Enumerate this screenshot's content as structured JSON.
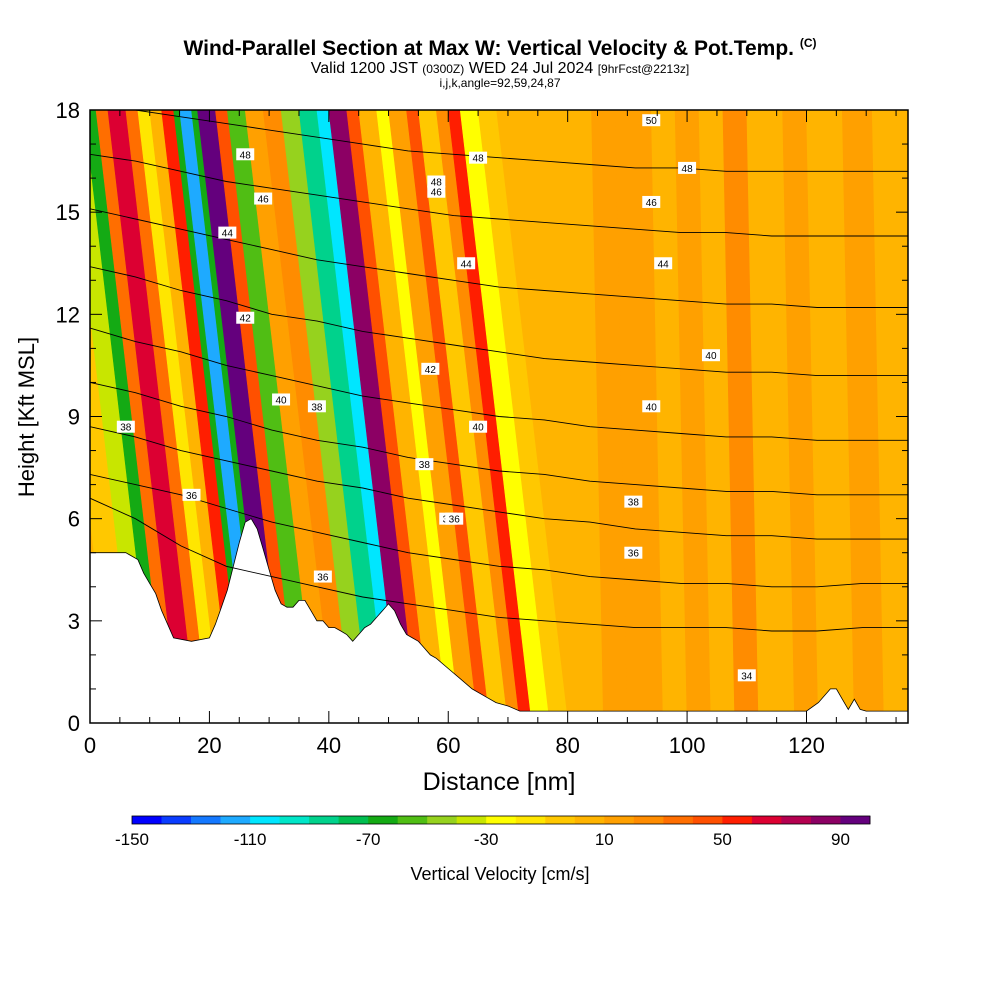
{
  "chart_data": {
    "type": "heatmap",
    "title": "Wind-Parallel Section at Max W: Vertical Velocity & Pot.Temp.",
    "title_mark": "(C)",
    "subtitle_main_a": "Valid 1200 JST",
    "subtitle_small_a": "(0300Z)",
    "subtitle_main_b": "WED 24 Jul 2024",
    "subtitle_small_b": "[9hrFcst@2213z]",
    "subtitle_line3": "i,j,k,angle=92,59,24,87",
    "xlabel": "Distance [nm]",
    "ylabel": "Height [Kft MSL]",
    "xlim": [
      0,
      137
    ],
    "ylim": [
      0,
      18
    ],
    "x_ticks": [
      "0",
      "20",
      "40",
      "60",
      "80",
      "100",
      "120"
    ],
    "y_ticks": [
      "0",
      "3",
      "6",
      "9",
      "12",
      "15",
      "18"
    ],
    "colorbar": {
      "label": "Vertical Velocity [cm/s]",
      "ticks": [
        "-150",
        "-110",
        "-70",
        "-30",
        "10",
        "50",
        "90"
      ],
      "tick_values": [
        -150,
        -110,
        -70,
        -30,
        10,
        50,
        90
      ],
      "min": -150,
      "max": 100,
      "colors": [
        "#0000ff",
        "#0a3cff",
        "#1478ff",
        "#1eaaff",
        "#00e6ff",
        "#00e6c8",
        "#00d28c",
        "#00be50",
        "#14aa14",
        "#50be14",
        "#96d21e",
        "#c8e600",
        "#ffff00",
        "#ffe600",
        "#ffc800",
        "#ffb400",
        "#ffa000",
        "#ff8c00",
        "#ff6e00",
        "#ff5000",
        "#ff1e00",
        "#dc0032",
        "#b40050",
        "#8c0064",
        "#64007d"
      ]
    },
    "contour_labels": [
      "50",
      "48",
      "48",
      "48",
      "48",
      "46",
      "46",
      "46",
      "44",
      "44",
      "44",
      "42",
      "42",
      "40",
      "40",
      "40",
      "40",
      "38",
      "38",
      "38",
      "38",
      "38",
      "36",
      "36",
      "36",
      "36",
      "34"
    ],
    "contour_levels": [
      {
        "theta": 34,
        "heights": [
          6.6,
          6.0,
          5.2,
          4.6,
          4.3,
          4.0,
          3.7,
          3.5,
          3.3,
          3.1,
          3.0,
          2.9,
          2.8,
          2.8,
          2.8,
          2.7,
          2.7,
          2.8,
          2.8
        ]
      },
      {
        "theta": 36,
        "heights": [
          7.3,
          7.0,
          6.7,
          6.3,
          5.9,
          5.6,
          5.3,
          5.0,
          4.8,
          4.6,
          4.5,
          4.3,
          4.2,
          4.1,
          4.1,
          4.0,
          4.0,
          4.1,
          4.1
        ]
      },
      {
        "theta": 38,
        "heights": [
          8.7,
          8.4,
          8.0,
          7.7,
          7.4,
          7.1,
          6.9,
          6.6,
          6.4,
          6.2,
          6.0,
          5.9,
          5.7,
          5.6,
          5.5,
          5.5,
          5.4,
          5.4,
          5.4
        ]
      },
      {
        "theta": 40,
        "heights": [
          10.0,
          9.7,
          9.3,
          9.0,
          8.6,
          8.3,
          8.1,
          7.8,
          7.6,
          7.4,
          7.3,
          7.1,
          7.0,
          6.9,
          6.8,
          6.8,
          6.7,
          6.7,
          6.7
        ]
      },
      {
        "theta": 42,
        "heights": [
          11.6,
          11.2,
          10.9,
          10.5,
          10.2,
          9.9,
          9.6,
          9.4,
          9.2,
          9.0,
          8.9,
          8.7,
          8.6,
          8.5,
          8.4,
          8.4,
          8.3,
          8.3,
          8.3
        ]
      },
      {
        "theta": 44,
        "heights": [
          13.4,
          13.1,
          12.7,
          12.4,
          12.0,
          11.8,
          11.5,
          11.3,
          11.1,
          10.9,
          10.7,
          10.6,
          10.5,
          10.4,
          10.3,
          10.3,
          10.2,
          10.2,
          10.2
        ]
      },
      {
        "theta": 46,
        "heights": [
          15.1,
          14.8,
          14.5,
          14.2,
          13.9,
          13.6,
          13.4,
          13.2,
          13.0,
          12.8,
          12.7,
          12.6,
          12.5,
          12.4,
          12.3,
          12.3,
          12.2,
          12.2,
          12.2
        ]
      },
      {
        "theta": 48,
        "heights": [
          16.7,
          16.5,
          16.2,
          15.9,
          15.7,
          15.5,
          15.3,
          15.1,
          14.9,
          14.8,
          14.7,
          14.6,
          14.5,
          14.4,
          14.4,
          14.3,
          14.3,
          14.3,
          14.3
        ]
      },
      {
        "theta": 50,
        "heights": [
          18.0,
          18.0,
          17.8,
          17.6,
          17.4,
          17.2,
          17.0,
          16.8,
          16.7,
          16.6,
          16.5,
          16.4,
          16.3,
          16.3,
          16.2,
          16.2,
          16.2,
          16.2,
          16.2
        ]
      }
    ],
    "terrain": {
      "x": [
        0,
        2,
        4,
        6,
        8,
        9,
        10,
        11,
        12,
        13,
        14,
        17,
        20,
        21,
        22,
        23,
        24,
        25,
        26,
        27,
        28,
        29,
        30,
        31,
        32,
        33,
        34,
        35,
        36,
        37,
        38,
        39,
        40,
        41,
        42,
        43,
        44,
        45,
        46,
        47,
        48,
        49,
        50,
        51,
        52,
        53,
        54,
        55,
        56,
        57,
        58,
        60,
        62,
        64,
        66,
        68,
        70,
        72,
        74,
        76,
        78,
        80,
        84,
        88,
        92,
        96,
        100,
        104,
        108,
        112,
        116,
        120,
        122,
        124,
        125,
        126,
        127,
        128,
        129,
        130,
        131,
        132,
        134,
        137
      ],
      "height": [
        5.0,
        5.0,
        5.0,
        5.0,
        4.8,
        4.4,
        4.1,
        3.8,
        3.3,
        2.9,
        2.5,
        2.4,
        2.5,
        2.9,
        3.4,
        3.9,
        4.6,
        5.3,
        5.9,
        6.0,
        5.7,
        5.1,
        4.5,
        3.9,
        3.5,
        3.4,
        3.4,
        3.6,
        3.6,
        3.3,
        3.0,
        3.0,
        2.8,
        2.8,
        2.7,
        2.6,
        2.4,
        2.6,
        2.8,
        2.9,
        3.1,
        3.3,
        3.5,
        3.3,
        2.9,
        2.6,
        2.5,
        2.4,
        2.2,
        2.0,
        1.9,
        1.6,
        1.3,
        1.0,
        0.8,
        0.6,
        0.5,
        0.35,
        0.35,
        0.35,
        0.35,
        0.35,
        0.35,
        0.35,
        0.35,
        0.35,
        0.35,
        0.35,
        0.35,
        0.35,
        0.35,
        0.35,
        0.6,
        1.0,
        1.0,
        0.7,
        0.4,
        0.7,
        0.4,
        0.35,
        0.35,
        0.35,
        0.35,
        0.35
      ]
    },
    "vertical_velocity_columns": [
      {
        "x_start": 0,
        "x_end": 4,
        "value": 5
      },
      {
        "x_start": 4,
        "x_end": 8,
        "value": -10
      },
      {
        "x_start": 8,
        "x_end": 11,
        "value": -40
      },
      {
        "x_start": 11,
        "x_end": 13,
        "value": -70
      },
      {
        "x_start": 13,
        "x_end": 15,
        "value": 30
      },
      {
        "x_start": 15,
        "x_end": 18,
        "value": 65
      },
      {
        "x_start": 18,
        "x_end": 20,
        "value": 30
      },
      {
        "x_start": 20,
        "x_end": 22,
        "value": -20
      },
      {
        "x_start": 22,
        "x_end": 24,
        "value": 5
      },
      {
        "x_start": 24,
        "x_end": 26,
        "value": 55
      },
      {
        "x_start": 26,
        "x_end": 27,
        "value": -70
      },
      {
        "x_start": 27,
        "x_end": 29,
        "value": -120
      },
      {
        "x_start": 29,
        "x_end": 30,
        "value": -70
      },
      {
        "x_start": 30,
        "x_end": 33,
        "value": 90
      },
      {
        "x_start": 33,
        "x_end": 35,
        "value": 40
      },
      {
        "x_start": 35,
        "x_end": 38,
        "value": -60
      },
      {
        "x_start": 38,
        "x_end": 41,
        "value": 10
      },
      {
        "x_start": 41,
        "x_end": 44,
        "value": 25
      },
      {
        "x_start": 44,
        "x_end": 47,
        "value": -50
      },
      {
        "x_start": 47,
        "x_end": 50,
        "value": -85
      },
      {
        "x_start": 50,
        "x_end": 52,
        "value": -110
      },
      {
        "x_start": 52,
        "x_end": 55,
        "value": 85
      },
      {
        "x_start": 55,
        "x_end": 57,
        "value": 45
      },
      {
        "x_start": 57,
        "x_end": 60,
        "value": 0
      },
      {
        "x_start": 60,
        "x_end": 62,
        "value": -30
      },
      {
        "x_start": 62,
        "x_end": 65,
        "value": 15
      },
      {
        "x_start": 65,
        "x_end": 67,
        "value": 45
      },
      {
        "x_start": 67,
        "x_end": 70,
        "value": -5
      },
      {
        "x_start": 70,
        "x_end": 72,
        "value": 25
      },
      {
        "x_start": 72,
        "x_end": 74,
        "value": 50
      },
      {
        "x_start": 74,
        "x_end": 77,
        "value": -25
      },
      {
        "x_start": 77,
        "x_end": 80,
        "value": -10
      },
      {
        "x_start": 80,
        "x_end": 86,
        "value": 5
      },
      {
        "x_start": 86,
        "x_end": 90,
        "value": 15
      },
      {
        "x_start": 90,
        "x_end": 96,
        "value": 10
      },
      {
        "x_start": 96,
        "x_end": 100,
        "value": 0
      },
      {
        "x_start": 100,
        "x_end": 104,
        "value": 10
      },
      {
        "x_start": 104,
        "x_end": 108,
        "value": 0
      },
      {
        "x_start": 108,
        "x_end": 112,
        "value": 25
      },
      {
        "x_start": 112,
        "x_end": 118,
        "value": 0
      },
      {
        "x_start": 118,
        "x_end": 122,
        "value": 15
      },
      {
        "x_start": 122,
        "x_end": 128,
        "value": 5
      },
      {
        "x_start": 128,
        "x_end": 133,
        "value": 10
      },
      {
        "x_start": 133,
        "x_end": 137,
        "value": 5
      }
    ]
  }
}
